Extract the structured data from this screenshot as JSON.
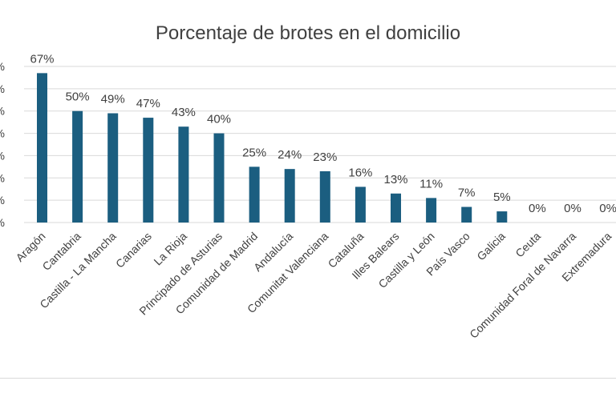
{
  "chart_data": {
    "type": "bar",
    "title": "Porcentaje de brotes en el domicilio",
    "categories": [
      "Aragón",
      "Cantabria",
      "Castilla - La Mancha",
      "Canarias",
      "La Rioja",
      "Principado de Asturias",
      "Comunidad de Madrid",
      "Andalucía",
      "Comunitat Valenciana",
      "Cataluña",
      "Illes Balears",
      "Castilla y León",
      "País Vasco",
      "Galicia",
      "Ceuta",
      "Comunidad Foral de Navarra",
      "Extremadura"
    ],
    "values": [
      67,
      50,
      49,
      47,
      43,
      40,
      25,
      24,
      23,
      16,
      13,
      11,
      7,
      5,
      0,
      0,
      0
    ],
    "data_labels": [
      "67%",
      "50%",
      "49%",
      "47%",
      "43%",
      "40%",
      "25%",
      "24%",
      "23%",
      "16%",
      "13%",
      "11%",
      "7%",
      "5%",
      "0%",
      "0%",
      "0%"
    ],
    "ytick_labels": [
      "%",
      "%",
      "%",
      "%",
      "%",
      "%",
      "%",
      "%"
    ],
    "ylim": [
      0,
      70
    ],
    "grid": true,
    "bar_color": "#1b5e80",
    "grid_color": "#d9d9d9",
    "text_color": "#404040"
  }
}
